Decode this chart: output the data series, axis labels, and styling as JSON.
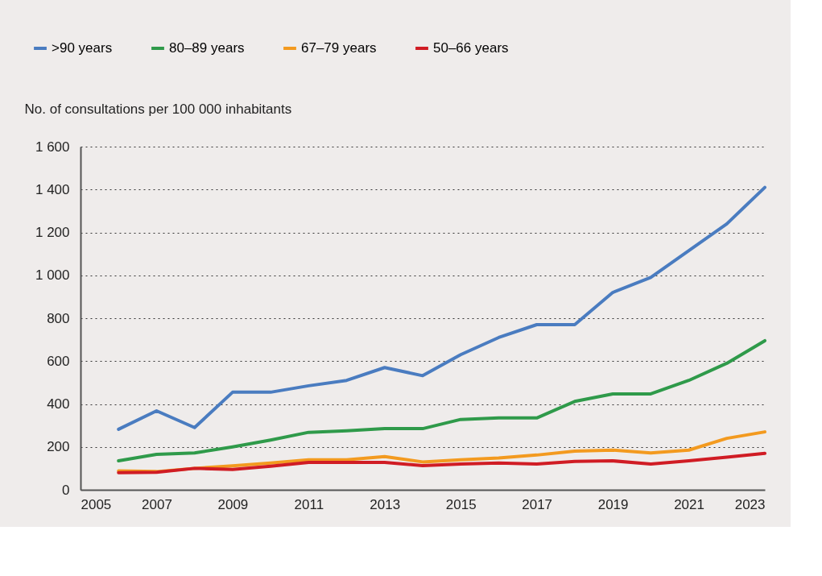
{
  "chart_data": {
    "type": "line",
    "ylabel": "No. of consultations per 100 000 inhabitants",
    "x": [
      2006,
      2007,
      2008,
      2009,
      2010,
      2011,
      2012,
      2013,
      2014,
      2015,
      2016,
      2017,
      2018,
      2019,
      2020,
      2021,
      2022,
      2023
    ],
    "series": [
      {
        "name": ">90 years",
        "color": "#4a7cc0",
        "values": [
          282,
          368,
          290,
          455,
          455,
          485,
          510,
          570,
          532,
          630,
          710,
          770,
          770,
          920,
          990,
          1115,
          1240,
          1410
        ]
      },
      {
        "name": "80–89 years",
        "color": "#2f9a4a",
        "values": [
          135,
          165,
          172,
          200,
          232,
          268,
          275,
          285,
          285,
          328,
          335,
          335,
          412,
          447,
          447,
          510,
          590,
          695
        ]
      },
      {
        "name": "67–79 years",
        "color": "#f39a1f",
        "values": [
          88,
          85,
          100,
          112,
          125,
          140,
          140,
          155,
          130,
          140,
          148,
          162,
          180,
          185,
          172,
          185,
          240,
          270
        ]
      },
      {
        "name": "50–66 years",
        "color": "#d01c24",
        "values": [
          80,
          82,
          100,
          95,
          110,
          128,
          128,
          128,
          113,
          120,
          125,
          120,
          132,
          135,
          120,
          135,
          152,
          170
        ]
      }
    ],
    "xlim": [
      2005,
      2023
    ],
    "xticks": [
      2005,
      2007,
      2009,
      2011,
      2013,
      2015,
      2017,
      2019,
      2021,
      2023
    ],
    "ylim": [
      0,
      1600
    ],
    "yticks": [
      0,
      200,
      400,
      600,
      800,
      {
        "value": 1000,
        "label": "1 000"
      },
      {
        "value": 1200,
        "label": "1 200"
      },
      {
        "value": 1400,
        "label": "1 400"
      },
      {
        "value": 1600,
        "label": "1 600"
      }
    ],
    "grid": "y",
    "legend": "top left",
    "marker": "none",
    "line_style": "solid"
  }
}
